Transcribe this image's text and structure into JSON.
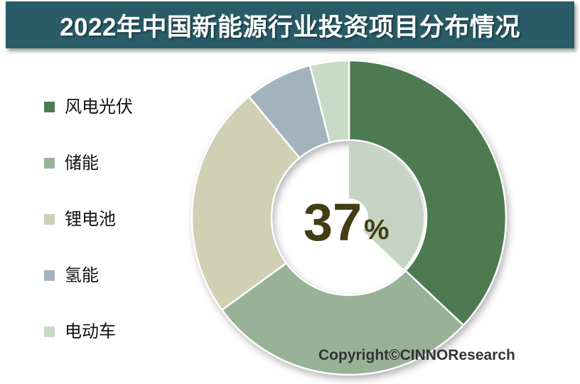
{
  "title": "2022年中国新能源行业投资项目分布情况",
  "footer": {
    "copyright": "Copyright©CINNOResearch"
  },
  "colors": {
    "banner": "#295C67",
    "banner_text": "#FFFFFF",
    "page_background": "#FFFFFF",
    "center_text": "#433D15",
    "copyright_text": "#333333",
    "slice_separator": "#FFFFFF"
  },
  "chart_data": {
    "type": "pie",
    "subtype": "donut",
    "title": "2022年中国新能源行业投资项目分布情况",
    "direction": "clockwise",
    "start_angle_deg": 0,
    "unit": "%",
    "categories": [
      "风电光伏",
      "储能",
      "锂电池",
      "氢能",
      "电动车"
    ],
    "values": [
      37,
      28,
      24,
      7,
      4
    ],
    "labeled_values_note": "only the leading slice value 37% is displayed in the chart center; other values estimated from slice angles",
    "colors": [
      "#4E7A52",
      "#98B297",
      "#CFD0B4",
      "#A2B3BD",
      "#C9DAC6"
    ],
    "center_label": {
      "value": "37",
      "suffix": "%"
    },
    "highlight": {
      "category": "风电光伏",
      "wedge_color": "#C6D4C3"
    },
    "legend_position": "left",
    "legend_items": [
      {
        "label": "风电光伏",
        "color": "#4E7A52"
      },
      {
        "label": "储能",
        "color": "#98B297"
      },
      {
        "label": "锂电池",
        "color": "#CFD0B4"
      },
      {
        "label": "氢能",
        "color": "#A2B3BD"
      },
      {
        "label": "电动车",
        "color": "#C9DAC6"
      }
    ]
  }
}
